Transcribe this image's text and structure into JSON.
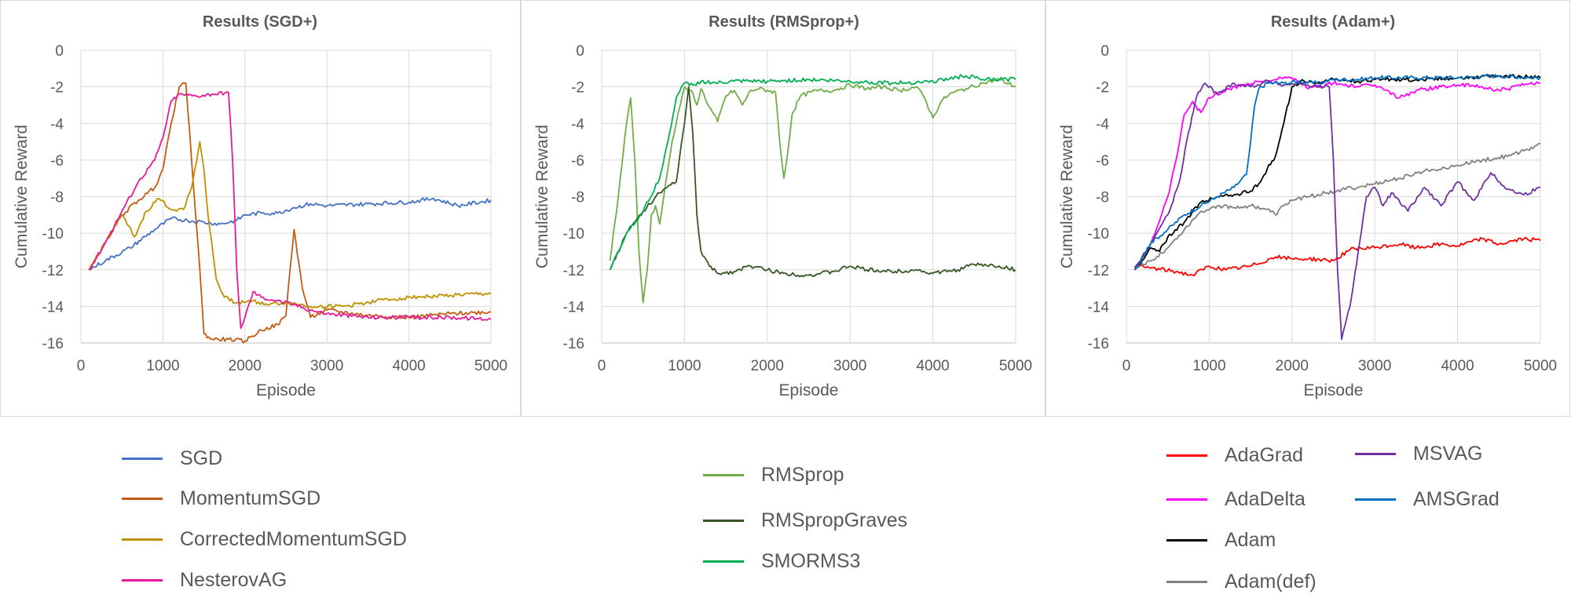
{
  "chart_data": [
    {
      "type": "line",
      "title": "Results (SGD+)",
      "xlabel": "Episode",
      "ylabel": "Cumulative Reward",
      "xlim": [
        0,
        5000
      ],
      "ylim": [
        -16,
        0
      ],
      "xticks": [
        "0",
        "1000",
        "2000",
        "3000",
        "4000",
        "5000"
      ],
      "yticks": [
        "0",
        "-2",
        "-4",
        "-6",
        "-8",
        "-10",
        "-12",
        "-14",
        "-16"
      ],
      "grid": true,
      "legend_position": "bottom",
      "series": [
        {
          "name": "SGD",
          "color": "#4472C4",
          "x": [
            100,
            300,
            600,
            900,
            1100,
            1300,
            1500,
            1700,
            1900,
            2000,
            2200,
            2400,
            2600,
            2800,
            3000,
            3500,
            4000,
            4300,
            4600,
            5000
          ],
          "y": [
            -12,
            -11.5,
            -10.8,
            -9.8,
            -9.2,
            -9.3,
            -9.4,
            -9.5,
            -9.3,
            -9.0,
            -8.9,
            -8.9,
            -8.6,
            -8.4,
            -8.5,
            -8.4,
            -8.3,
            -8.1,
            -8.5,
            -8.2
          ]
        },
        {
          "name": "MomentumSGD",
          "color": "#C55A11",
          "x": [
            100,
            300,
            500,
            700,
            900,
            1000,
            1100,
            1200,
            1280,
            1350,
            1450,
            1500,
            1600,
            1800,
            2000,
            2200,
            2400,
            2500,
            2550,
            2600,
            2700,
            2800,
            3000,
            3500,
            4000,
            4500,
            5000
          ],
          "y": [
            -12,
            -10.5,
            -9,
            -8.2,
            -7.5,
            -6.5,
            -4,
            -2,
            -1.8,
            -6,
            -12,
            -15.5,
            -15.8,
            -15.8,
            -15.9,
            -15.3,
            -15,
            -14.5,
            -12,
            -9.8,
            -13,
            -14.6,
            -14.2,
            -14.5,
            -14.6,
            -14.4,
            -14.3
          ]
        },
        {
          "name": "CorrectedMomentumSGD",
          "color": "#BF9000",
          "x": [
            100,
            300,
            500,
            650,
            800,
            950,
            1100,
            1250,
            1350,
            1450,
            1500,
            1550,
            1650,
            1750,
            1900,
            2100,
            2300,
            2500,
            2800,
            3200,
            3600,
            4000,
            4500,
            5000
          ],
          "y": [
            -12,
            -10.5,
            -9,
            -10.2,
            -8.8,
            -8.1,
            -8.7,
            -8.7,
            -7.5,
            -5,
            -6.5,
            -9,
            -12.5,
            -13.5,
            -13.8,
            -13.7,
            -13.9,
            -13.8,
            -14,
            -14,
            -13.7,
            -13.5,
            -13.4,
            -13.3
          ]
        },
        {
          "name": "NesterovAG",
          "color": "#E6199B",
          "x": [
            100,
            300,
            500,
            700,
            900,
            1000,
            1100,
            1200,
            1400,
            1600,
            1800,
            1850,
            1900,
            1950,
            2000,
            2100,
            2200,
            2400,
            2600,
            2800,
            3000,
            3500,
            4000,
            4500,
            5000
          ],
          "y": [
            -12,
            -10.5,
            -8.8,
            -7.2,
            -6,
            -4.8,
            -2.8,
            -2.4,
            -2.5,
            -2.4,
            -2.3,
            -6,
            -12,
            -15.2,
            -14.6,
            -13.2,
            -13.5,
            -13.7,
            -13.9,
            -14.2,
            -14.4,
            -14.6,
            -14.6,
            -14.6,
            -14.7
          ]
        }
      ]
    },
    {
      "type": "line",
      "title": "Results (RMSprop+)",
      "xlabel": "Episode",
      "ylabel": "Cumulative Reward",
      "xlim": [
        0,
        5000
      ],
      "ylim": [
        -16,
        0
      ],
      "xticks": [
        "0",
        "1000",
        "2000",
        "3000",
        "4000",
        "5000"
      ],
      "yticks": [
        "0",
        "-2",
        "-4",
        "-6",
        "-8",
        "-10",
        "-12",
        "-14",
        "-16"
      ],
      "grid": true,
      "legend_position": "bottom",
      "series": [
        {
          "name": "RMSprop",
          "color": "#70AD47",
          "x": [
            100,
            200,
            300,
            350,
            400,
            450,
            500,
            550,
            600,
            650,
            700,
            750,
            800,
            850,
            900,
            950,
            1000,
            1050,
            1100,
            1150,
            1200,
            1300,
            1400,
            1500,
            1600,
            1700,
            1800,
            1900,
            2000,
            2100,
            2150,
            2200,
            2250,
            2300,
            2400,
            2600,
            2800,
            3000,
            3200,
            3400,
            3600,
            3800,
            3900,
            4000,
            4100,
            4200,
            4400,
            4600,
            4800,
            5000
          ],
          "y": [
            -11.5,
            -8,
            -4,
            -2.6,
            -6,
            -11,
            -13.8,
            -12,
            -9,
            -8.5,
            -9.5,
            -8,
            -6.5,
            -5,
            -4,
            -3,
            -2,
            -2.2,
            -2.3,
            -3,
            -2.1,
            -3.1,
            -3.9,
            -2.5,
            -2.2,
            -3,
            -2.2,
            -2.1,
            -2.2,
            -2.3,
            -5,
            -7,
            -5.5,
            -3.5,
            -2.5,
            -2.2,
            -2.2,
            -1.9,
            -2.1,
            -2.0,
            -2.2,
            -2.0,
            -2.6,
            -3.7,
            -2.8,
            -2.4,
            -2.1,
            -1.8,
            -1.6,
            -2.0
          ]
        },
        {
          "name": "RMSpropGraves",
          "color": "#375623",
          "x": [
            100,
            300,
            500,
            700,
            900,
            1000,
            1050,
            1100,
            1150,
            1200,
            1300,
            1400,
            1600,
            1800,
            2000,
            2200,
            2500,
            2800,
            3000,
            3200,
            3500,
            3800,
            4000,
            4300,
            4500,
            4800,
            5000
          ],
          "y": [
            -12,
            -10,
            -8.8,
            -7.8,
            -7.2,
            -4,
            -2,
            -4.5,
            -9,
            -11,
            -11.8,
            -12.2,
            -12.1,
            -11.8,
            -12.0,
            -12.2,
            -12.3,
            -12.1,
            -11.8,
            -12.0,
            -12.1,
            -12.0,
            -12.2,
            -12.0,
            -11.7,
            -11.8,
            -12.0
          ]
        },
        {
          "name": "SMORMS3",
          "color": "#00B050",
          "x": [
            100,
            300,
            500,
            700,
            800,
            900,
            1000,
            1100,
            1200,
            1400,
            1600,
            2000,
            2500,
            3000,
            3500,
            4000,
            4400,
            4600,
            5000
          ],
          "y": [
            -12,
            -10,
            -8.8,
            -7,
            -5,
            -2.6,
            -1.8,
            -1.9,
            -1.7,
            -1.8,
            -1.7,
            -1.7,
            -1.6,
            -1.7,
            -1.8,
            -1.7,
            -1.4,
            -1.6,
            -1.6
          ]
        }
      ]
    },
    {
      "type": "line",
      "title": "Results (Adam+)",
      "xlabel": "Episode",
      "ylabel": "Cumulative Reward",
      "xlim": [
        0,
        5000
      ],
      "ylim": [
        -16,
        0
      ],
      "xticks": [
        "0",
        "1000",
        "2000",
        "3000",
        "4000",
        "5000"
      ],
      "yticks": [
        "0",
        "-2",
        "-4",
        "-6",
        "-8",
        "-10",
        "-12",
        "-14",
        "-16"
      ],
      "grid": true,
      "legend_position": "bottom",
      "series": [
        {
          "name": "AdaGrad",
          "color": "#FF0000",
          "x": [
            100,
            300,
            600,
            800,
            1000,
            1200,
            1500,
            1800,
            2000,
            2200,
            2500,
            2700,
            3000,
            3300,
            3500,
            3800,
            4000,
            4300,
            4500,
            4800,
            5000
          ],
          "y": [
            -11.8,
            -11.9,
            -12.1,
            -12.3,
            -11.8,
            -12.0,
            -11.8,
            -11.3,
            -11.4,
            -11.4,
            -11.5,
            -10.9,
            -10.8,
            -10.6,
            -10.8,
            -10.6,
            -10.7,
            -10.3,
            -10.6,
            -10.3,
            -10.4
          ]
        },
        {
          "name": "AdaDelta",
          "color": "#FF00FF",
          "x": [
            100,
            300,
            500,
            600,
            700,
            800,
            900,
            1000,
            1200,
            1400,
            1600,
            1800,
            2000,
            2200,
            2500,
            2800,
            3000,
            3300,
            3500,
            3800,
            4000,
            4300,
            4500,
            4800,
            5000
          ],
          "y": [
            -12,
            -10.5,
            -8,
            -6,
            -3.5,
            -2.8,
            -3.4,
            -2.6,
            -2.2,
            -1.9,
            -1.7,
            -1.6,
            -1.5,
            -2.1,
            -1.8,
            -2.0,
            -1.9,
            -2.6,
            -2.2,
            -2.0,
            -1.9,
            -2.0,
            -2.2,
            -1.9,
            -1.8
          ]
        },
        {
          "name": "Adam",
          "color": "#000000",
          "x": [
            100,
            300,
            400,
            500,
            700,
            900,
            1100,
            1300,
            1500,
            1600,
            1700,
            1800,
            1900,
            2000,
            2100,
            2300,
            2500,
            2800,
            3000,
            3500,
            4000,
            4500,
            5000
          ],
          "y": [
            -12,
            -10.8,
            -11,
            -10.2,
            -9.4,
            -8.3,
            -8.0,
            -7.9,
            -7.7,
            -7.3,
            -6.5,
            -5.8,
            -4.0,
            -2.0,
            -1.7,
            -1.8,
            -1.6,
            -1.7,
            -1.6,
            -1.6,
            -1.5,
            -1.4,
            -1.5
          ]
        },
        {
          "name": "Adam(def)",
          "color": "#808080",
          "x": [
            100,
            300,
            500,
            700,
            900,
            1100,
            1300,
            1500,
            1700,
            1800,
            1900,
            2000,
            2200,
            2400,
            2600,
            2800,
            3000,
            3300,
            3600,
            4000,
            4300,
            4600,
            4800,
            5000
          ],
          "y": [
            -12,
            -11.5,
            -10.8,
            -9.8,
            -8.8,
            -8.5,
            -8.6,
            -8.5,
            -8.7,
            -9.0,
            -8.5,
            -8.2,
            -8.0,
            -7.8,
            -7.6,
            -7.5,
            -7.3,
            -7.0,
            -6.6,
            -6.3,
            -6.0,
            -5.8,
            -5.5,
            -5.1
          ]
        },
        {
          "name": "MSVAG",
          "color": "#7030A0",
          "x": [
            100,
            300,
            500,
            650,
            750,
            850,
            950,
            1100,
            1300,
            1500,
            1700,
            1900,
            2100,
            2300,
            2450,
            2500,
            2550,
            2600,
            2700,
            2800,
            2900,
            3000,
            3100,
            3200,
            3400,
            3600,
            3800,
            4000,
            4200,
            4400,
            4600,
            4800,
            5000
          ],
          "y": [
            -12,
            -10.5,
            -9,
            -7,
            -4.5,
            -2.5,
            -1.8,
            -2.4,
            -1.8,
            -2.0,
            -1.7,
            -1.9,
            -1.8,
            -2.0,
            -2.0,
            -6,
            -12,
            -15.8,
            -14,
            -11,
            -8,
            -7.5,
            -8.5,
            -7.8,
            -8.8,
            -7.5,
            -8.5,
            -7.2,
            -8.2,
            -6.7,
            -7.6,
            -7.9,
            -7.5
          ]
        },
        {
          "name": "AMSGrad",
          "color": "#0070C0",
          "x": [
            100,
            300,
            500,
            700,
            900,
            1100,
            1300,
            1450,
            1500,
            1550,
            1600,
            1700,
            1900,
            2100,
            2300,
            2500,
            2800,
            3000,
            3500,
            4000,
            4500,
            5000
          ],
          "y": [
            -12,
            -10.5,
            -9.8,
            -9.0,
            -8.5,
            -8.0,
            -7.5,
            -6.8,
            -5,
            -3,
            -2.1,
            -1.8,
            -1.8,
            -1.7,
            -1.8,
            -1.6,
            -1.6,
            -1.5,
            -1.5,
            -1.5,
            -1.4,
            -1.5
          ]
        }
      ]
    }
  ]
}
